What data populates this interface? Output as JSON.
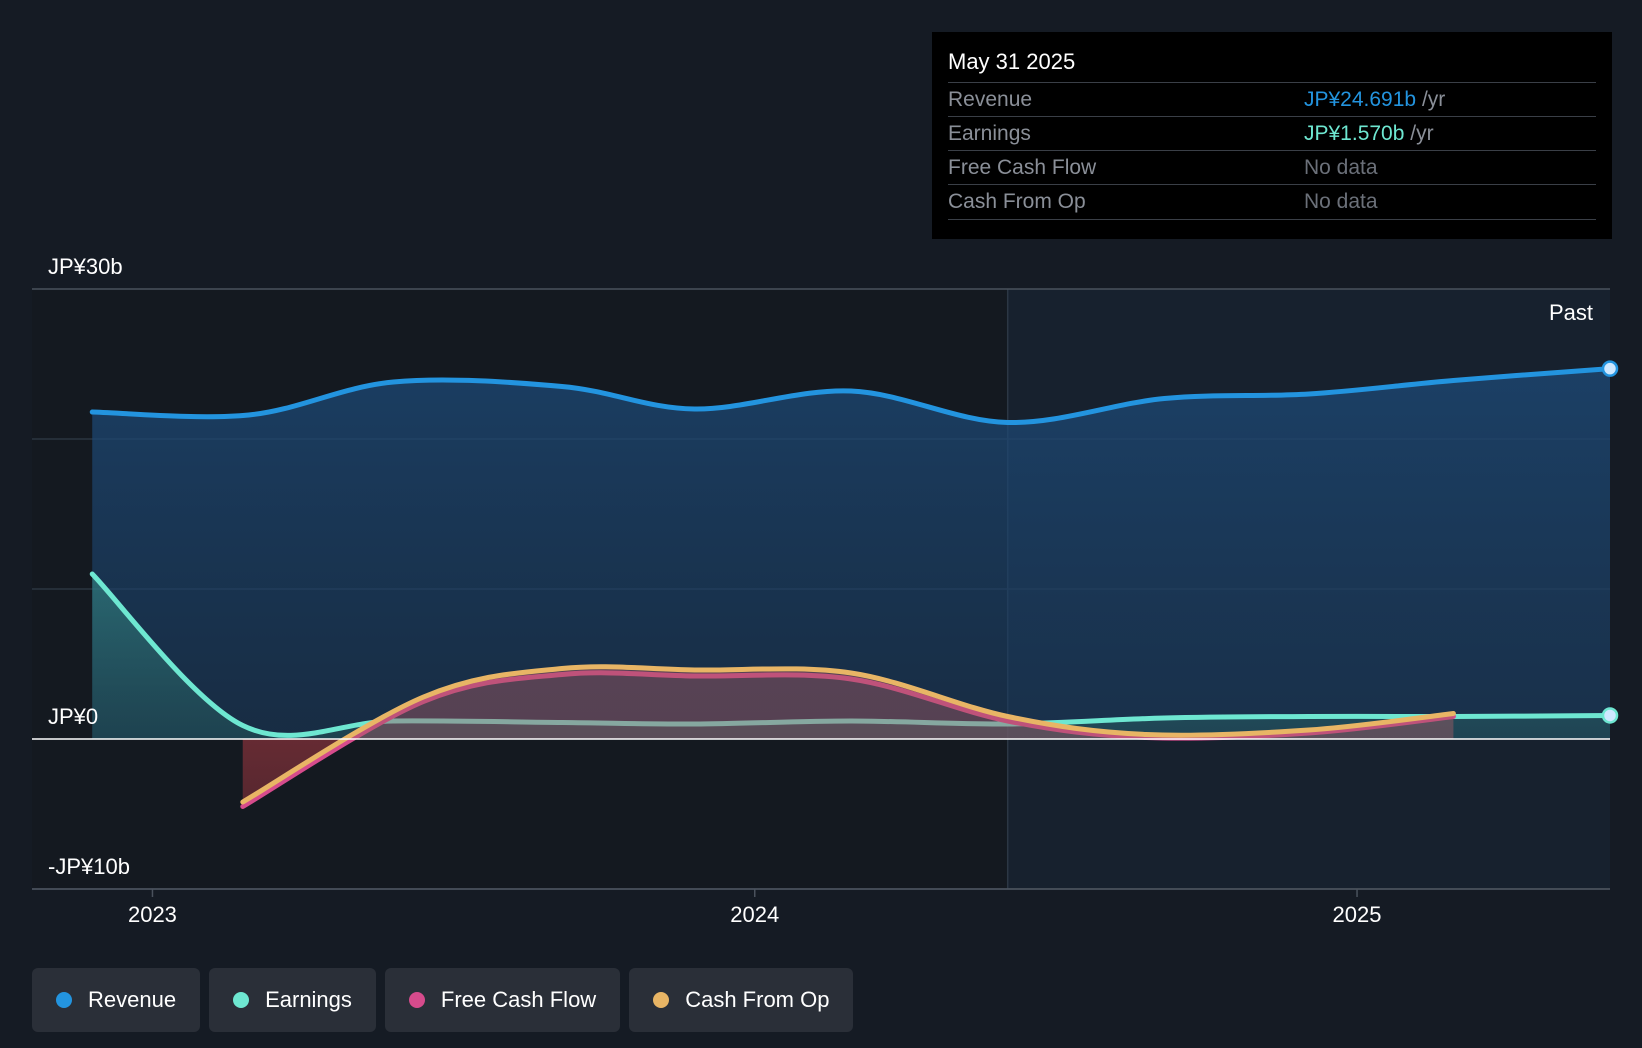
{
  "chart_data": {
    "type": "area",
    "currency_axis": {
      "ticks": [
        {
          "value": 30,
          "label": "JP¥30b"
        },
        {
          "value": 0,
          "label": "JP¥0"
        },
        {
          "value": -10,
          "label": "-JP¥10b"
        }
      ],
      "ylim": [
        -10,
        30
      ]
    },
    "x_ticks": [
      {
        "value": 2023.0,
        "label": "2023"
      },
      {
        "value": 2024.0,
        "label": "2024"
      },
      {
        "value": 2025.0,
        "label": "2025"
      }
    ],
    "xlim": [
      2022.8,
      2025.42
    ],
    "past_start": 2024.42,
    "past_label": "Past",
    "series": [
      {
        "name": "Revenue",
        "color": "#2394df",
        "x": [
          2022.9,
          2023.16,
          2023.4,
          2023.68,
          2023.9,
          2024.16,
          2024.42,
          2024.68,
          2024.92,
          2025.16,
          2025.42
        ],
        "values": [
          21.8,
          21.6,
          23.8,
          23.5,
          22.0,
          23.2,
          21.1,
          22.7,
          23.0,
          23.9,
          24.691
        ]
      },
      {
        "name": "Earnings",
        "color": "#6ee7d1",
        "x": [
          2022.9,
          2023.15,
          2023.4,
          2023.68,
          2023.9,
          2024.16,
          2024.42,
          2024.68,
          2024.92,
          2025.16,
          2025.42
        ],
        "values": [
          11.0,
          0.9,
          1.2,
          1.1,
          1.0,
          1.2,
          1.0,
          1.4,
          1.5,
          1.5,
          1.57
        ]
      },
      {
        "name": "Free Cash Flow",
        "color": "#d64b8c",
        "x": [
          2023.15,
          2023.45,
          2023.68,
          2023.9,
          2024.16,
          2024.42,
          2024.65,
          2024.92,
          2025.16
        ],
        "values": [
          -4.5,
          2.5,
          4.3,
          4.2,
          4.0,
          1.2,
          0.1,
          0.4,
          1.5
        ]
      },
      {
        "name": "Cash From Op",
        "color": "#e8b565",
        "x": [
          2023.15,
          2023.45,
          2023.68,
          2023.9,
          2024.16,
          2024.42,
          2024.65,
          2024.92,
          2025.16
        ],
        "values": [
          -4.2,
          2.8,
          4.7,
          4.6,
          4.4,
          1.5,
          0.3,
          0.6,
          1.7
        ]
      }
    ]
  },
  "tooltip": {
    "date": "May 31 2025",
    "rows": [
      {
        "label": "Revenue",
        "value": "JP¥24.691b",
        "unit": "/yr",
        "color": "#2394df"
      },
      {
        "label": "Earnings",
        "value": "JP¥1.570b",
        "unit": "/yr",
        "color": "#6ee7d1"
      },
      {
        "label": "Free Cash Flow",
        "value": "No data",
        "unit": "",
        "color": "#6b7079"
      },
      {
        "label": "Cash From Op",
        "value": "No data",
        "unit": "",
        "color": "#6b7079"
      }
    ]
  },
  "legend": [
    {
      "label": "Revenue",
      "color": "#2394df"
    },
    {
      "label": "Earnings",
      "color": "#6ee7d1"
    },
    {
      "label": "Free Cash Flow",
      "color": "#d64b8c"
    },
    {
      "label": "Cash From Op",
      "color": "#e8b565"
    }
  ]
}
